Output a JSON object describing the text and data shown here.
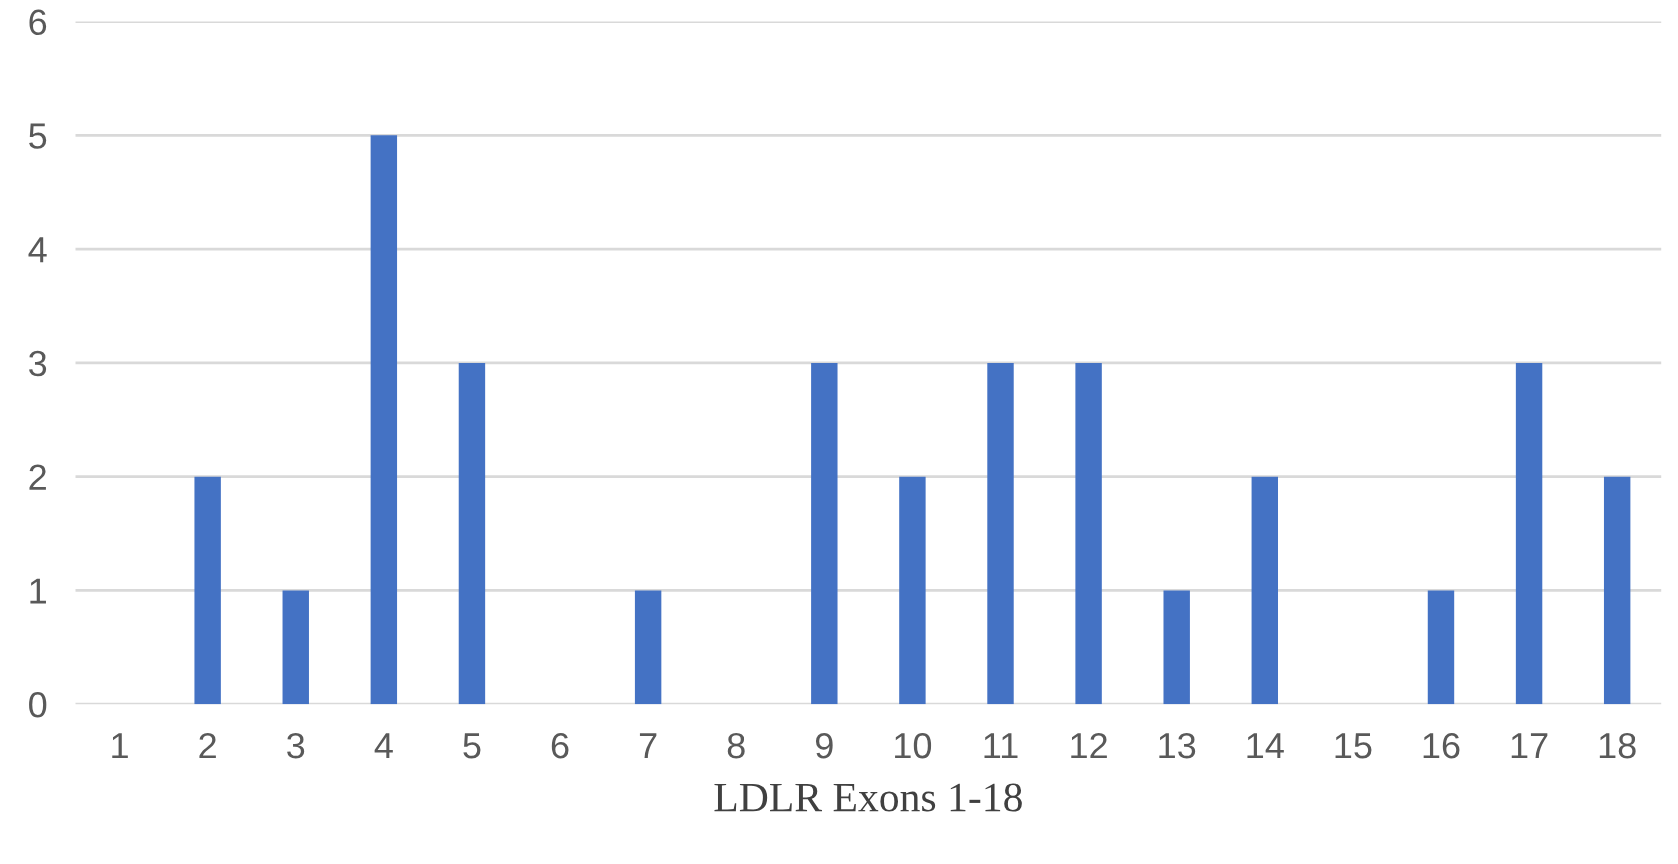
{
  "chart_data": {
    "type": "bar",
    "xlabel": "LDLR Exons 1-18",
    "categories": [
      "1",
      "2",
      "3",
      "4",
      "5",
      "6",
      "7",
      "8",
      "9",
      "10",
      "11",
      "12",
      "13",
      "14",
      "15",
      "16",
      "17",
      "18"
    ],
    "values": [
      0,
      2,
      1,
      5,
      3,
      0,
      1,
      0,
      3,
      2,
      3,
      3,
      1,
      2,
      0,
      1,
      3,
      2
    ],
    "color": "#4472c4",
    "ylim": [
      0,
      6
    ],
    "yticks": [
      0,
      1,
      2,
      3,
      4,
      5,
      6
    ],
    "grid": "y",
    "legend": false
  }
}
